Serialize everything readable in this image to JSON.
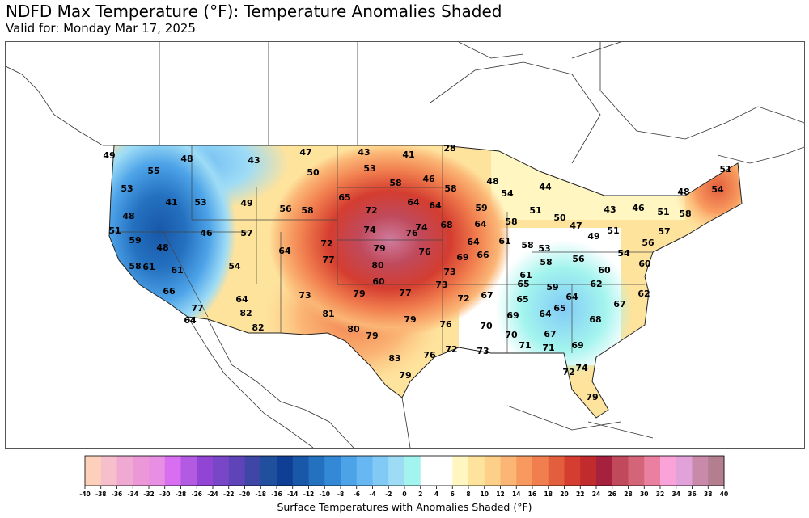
{
  "header": {
    "title": "NDFD Max Temperature (°F): Temperature Anomalies Shaded",
    "valid": "Valid for: Monday Mar 17, 2025"
  },
  "map": {
    "temperatures": [
      {
        "id": "nw-coast-1",
        "value": "49"
      },
      {
        "id": "wa-1",
        "value": "55"
      },
      {
        "id": "wa-2",
        "value": "48"
      },
      {
        "id": "mt-w",
        "value": "43"
      },
      {
        "id": "mt-n",
        "value": "47"
      },
      {
        "id": "mt-c",
        "value": "50"
      },
      {
        "id": "nd-w",
        "value": "43"
      },
      {
        "id": "nd-e",
        "value": "41"
      },
      {
        "id": "mn-n",
        "value": "28"
      },
      {
        "id": "or-coast",
        "value": "53"
      },
      {
        "id": "or-c",
        "value": "41"
      },
      {
        "id": "id-w",
        "value": "53"
      },
      {
        "id": "id-s",
        "value": "49"
      },
      {
        "id": "sd-n",
        "value": "53"
      },
      {
        "id": "sd-e",
        "value": "58"
      },
      {
        "id": "mn-c",
        "value": "46"
      },
      {
        "id": "wi-n",
        "value": "48"
      },
      {
        "id": "mi-up",
        "value": "54"
      },
      {
        "id": "mi-n",
        "value": "44"
      },
      {
        "id": "me-n",
        "value": "51"
      },
      {
        "id": "ca-n",
        "value": "48"
      },
      {
        "id": "wy-w",
        "value": "56"
      },
      {
        "id": "wy-e",
        "value": "58"
      },
      {
        "id": "ne-w",
        "value": "65"
      },
      {
        "id": "sd-s",
        "value": "72"
      },
      {
        "id": "ia-w",
        "value": "64"
      },
      {
        "id": "mn-s",
        "value": "64"
      },
      {
        "id": "mn-se",
        "value": "58"
      },
      {
        "id": "wi-s",
        "value": "59"
      },
      {
        "id": "mi-w",
        "value": "51"
      },
      {
        "id": "mi-e",
        "value": "50"
      },
      {
        "id": "vt",
        "value": "48"
      },
      {
        "id": "me-s",
        "value": "54"
      },
      {
        "id": "ca-coast",
        "value": "51"
      },
      {
        "id": "nv-n",
        "value": "46"
      },
      {
        "id": "ut-n",
        "value": "57"
      },
      {
        "id": "ne-c",
        "value": "74"
      },
      {
        "id": "ia-s",
        "value": "74"
      },
      {
        "id": "ia-c",
        "value": "76"
      },
      {
        "id": "il-n",
        "value": "68"
      },
      {
        "id": "wi-se",
        "value": "64"
      },
      {
        "id": "mi-s",
        "value": "58"
      },
      {
        "id": "on-s",
        "value": "47"
      },
      {
        "id": "ny-w",
        "value": "43"
      },
      {
        "id": "ny-c",
        "value": "46"
      },
      {
        "id": "nh",
        "value": "51"
      },
      {
        "id": "ma",
        "value": "58"
      },
      {
        "id": "ca-ne",
        "value": "59"
      },
      {
        "id": "nv-c",
        "value": "48"
      },
      {
        "id": "co-w",
        "value": "64"
      },
      {
        "id": "co-e",
        "value": "72"
      },
      {
        "id": "ks-n",
        "value": "79"
      },
      {
        "id": "mo-n",
        "value": "76"
      },
      {
        "id": "il-c",
        "value": "64"
      },
      {
        "id": "in-n",
        "value": "61"
      },
      {
        "id": "oh-w",
        "value": "58"
      },
      {
        "id": "oh-c",
        "value": "53"
      },
      {
        "id": "pa-w",
        "value": "49"
      },
      {
        "id": "pa-e",
        "value": "51"
      },
      {
        "id": "ct",
        "value": "57"
      },
      {
        "id": "ca-c",
        "value": "58"
      },
      {
        "id": "ca-c2",
        "value": "61"
      },
      {
        "id": "ca-e",
        "value": "61"
      },
      {
        "id": "az-n",
        "value": "54"
      },
      {
        "id": "nm-n",
        "value": "77"
      },
      {
        "id": "ks-c",
        "value": "80"
      },
      {
        "id": "mo-c",
        "value": "69"
      },
      {
        "id": "in-s",
        "value": "66"
      },
      {
        "id": "oh-s",
        "value": "58"
      },
      {
        "id": "md",
        "value": "56"
      },
      {
        "id": "nj",
        "value": "56"
      },
      {
        "id": "wv",
        "value": "54"
      },
      {
        "id": "va-n",
        "value": "60"
      },
      {
        "id": "de",
        "value": "60"
      },
      {
        "id": "ca-s",
        "value": "66"
      },
      {
        "id": "ok-n",
        "value": "60"
      },
      {
        "id": "ar-n",
        "value": "73"
      },
      {
        "id": "ky-w",
        "value": "61"
      },
      {
        "id": "ky-e",
        "value": "65"
      },
      {
        "id": "va-s",
        "value": "59"
      },
      {
        "id": "nc-n",
        "value": "62"
      },
      {
        "id": "nc-e",
        "value": "62"
      },
      {
        "id": "ca-sw",
        "value": "77"
      },
      {
        "id": "az-c",
        "value": "64"
      },
      {
        "id": "nm-w",
        "value": "73"
      },
      {
        "id": "ok-w",
        "value": "79"
      },
      {
        "id": "ok-e",
        "value": "77"
      },
      {
        "id": "mo-s",
        "value": "73"
      },
      {
        "id": "tn-w",
        "value": "67"
      },
      {
        "id": "tn-c",
        "value": "65"
      },
      {
        "id": "nc-w",
        "value": "64"
      },
      {
        "id": "nc-s",
        "value": "67"
      },
      {
        "id": "ca-sd",
        "value": "64"
      },
      {
        "id": "az-w",
        "value": "82"
      },
      {
        "id": "nm-s",
        "value": "81"
      },
      {
        "id": "ar-c",
        "value": "72"
      },
      {
        "id": "ga-n",
        "value": "64"
      },
      {
        "id": "sc-n",
        "value": "65"
      },
      {
        "id": "az-s",
        "value": "82"
      },
      {
        "id": "tx-w",
        "value": "80"
      },
      {
        "id": "tx-n",
        "value": "79"
      },
      {
        "id": "tx-ne",
        "value": "79"
      },
      {
        "id": "ms-n",
        "value": "69"
      },
      {
        "id": "sc-s",
        "value": "68"
      },
      {
        "id": "la-n",
        "value": "76"
      },
      {
        "id": "ms-c",
        "value": "70"
      },
      {
        "id": "al-c",
        "value": "70"
      },
      {
        "id": "ga-c",
        "value": "67"
      },
      {
        "id": "al-s",
        "value": "71"
      },
      {
        "id": "ga-s",
        "value": "71"
      },
      {
        "id": "ga-se",
        "value": "69"
      },
      {
        "id": "tx-c",
        "value": "83"
      },
      {
        "id": "la-s",
        "value": "76"
      },
      {
        "id": "la-se",
        "value": "72"
      },
      {
        "id": "ms-s",
        "value": "73"
      },
      {
        "id": "fl-n",
        "value": "72"
      },
      {
        "id": "fl-c",
        "value": "74"
      },
      {
        "id": "tx-s",
        "value": "79"
      },
      {
        "id": "fl-s",
        "value": "79"
      }
    ]
  },
  "legend": {
    "colors": [
      "#fdd0bc",
      "#f6bfcb",
      "#f0a9d3",
      "#ec98d8",
      "#e88fe4",
      "#d76ff0",
      "#b25ae2",
      "#9244d4",
      "#7846c7",
      "#5e44b8",
      "#3f46a6",
      "#204f9e",
      "#0f3f94",
      "#1957a8",
      "#2471c0",
      "#3389d6",
      "#4da3e8",
      "#67b7f3",
      "#82caf6",
      "#9edcf6",
      "#a3f4ee",
      "#ffffff",
      "#ffffff",
      "#fff6c1",
      "#fee39d",
      "#fdd08a",
      "#fbb676",
      "#f89a5f",
      "#f17e4e",
      "#e35e3c",
      "#d43d30",
      "#c22b2e",
      "#a5213d",
      "#c04a5c",
      "#d46478",
      "#ea7fa0",
      "#f9a3d9",
      "#e0a2d8",
      "#c98aa9",
      "#b37f8f",
      "#9e6c75",
      "#8a5a5f",
      "#6a4a34"
    ],
    "ticks": [
      "-40",
      "-38",
      "-36",
      "-34",
      "-32",
      "-30",
      "-28",
      "-26",
      "-24",
      "-22",
      "-20",
      "-18",
      "-16",
      "-14",
      "-12",
      "-10",
      "-8",
      "-6",
      "-4",
      "-2",
      "0",
      "2",
      "4",
      "6",
      "8",
      "10",
      "12",
      "14",
      "16",
      "18",
      "20",
      "22",
      "24",
      "26",
      "28",
      "30",
      "32",
      "34",
      "36",
      "38",
      "40"
    ],
    "caption": "Surface Temperatures with Anomalies Shaded (°F)"
  }
}
